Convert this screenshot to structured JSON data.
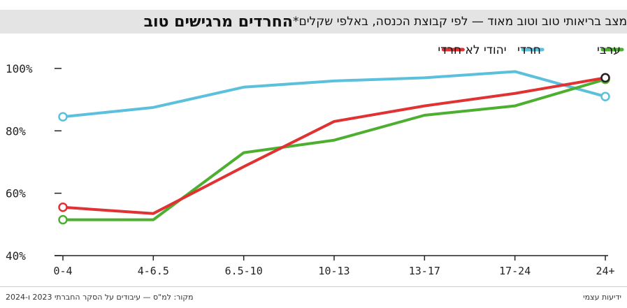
{
  "header": {
    "title": "החרדים מרגישים טוב",
    "subtitle": "מצב בריאותי טוב וטוב מאוד — לפי קבוצת הכנסה, באלפי שקלים*"
  },
  "footer": {
    "source": "מקור: למ\"ס — עיבודים על הסקר החברתי 2023 ו-2024",
    "credit": "ידיעות עצמי"
  },
  "chart_data": {
    "type": "line",
    "categories": [
      "0-4",
      "4-6.5",
      "6.5-10",
      "10-13",
      "13-17",
      "17-24",
      "24+"
    ],
    "ylim": [
      40,
      100
    ],
    "yticks": [
      40,
      60,
      80,
      100
    ],
    "ytick_labels": [
      "40%",
      "60%",
      "80%",
      "100%"
    ],
    "grid": false,
    "legend_position": "top-right",
    "series": [
      {
        "name": "ערבי",
        "color": "#4caf2f",
        "values": [
          51.5,
          51.5,
          73,
          77,
          85,
          88,
          96.5
        ]
      },
      {
        "name": "חרדי",
        "color": "#5bc0dc",
        "values": [
          84.5,
          87.5,
          94,
          96,
          97,
          99,
          91
        ]
      },
      {
        "name": "יהודי לא חרדי",
        "color": "#e03232",
        "values": [
          55.5,
          53.5,
          68.5,
          83,
          88,
          92,
          97
        ]
      }
    ]
  }
}
